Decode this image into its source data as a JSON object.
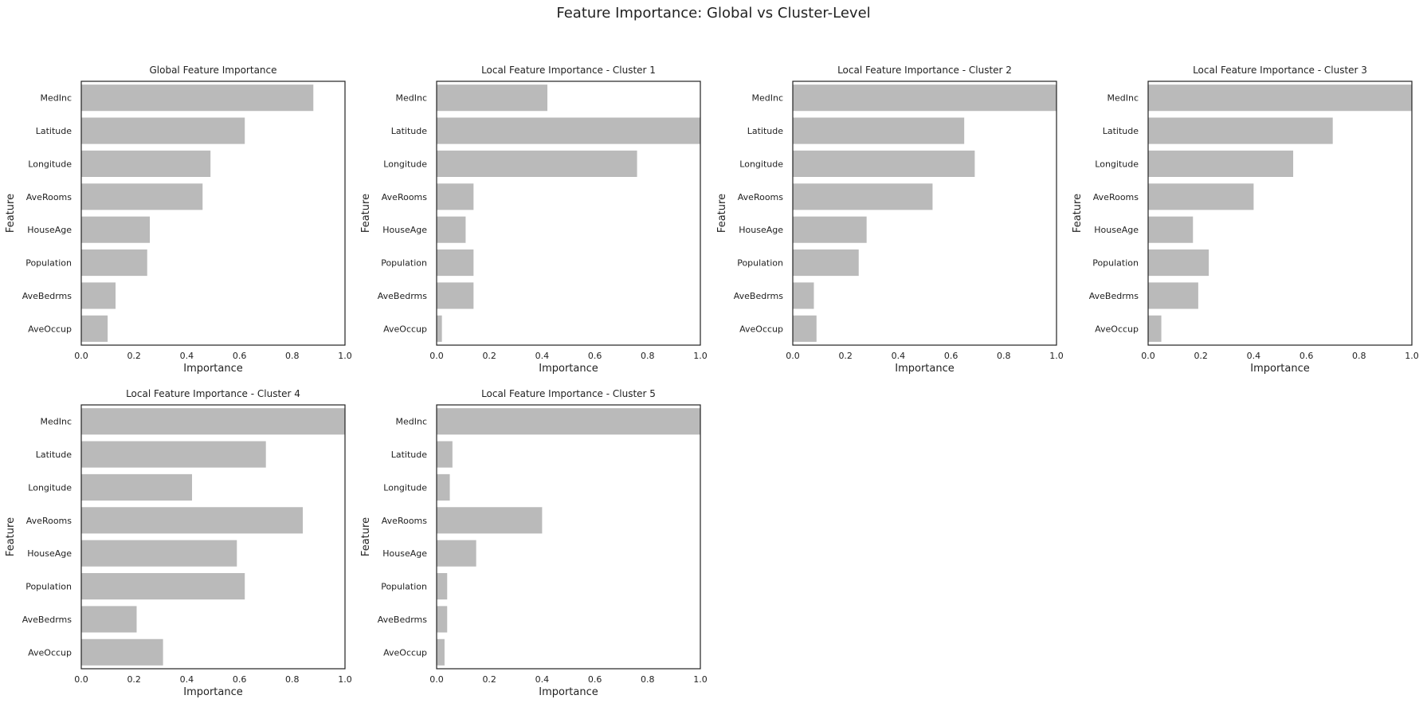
{
  "suptitle": "Feature Importance: Global vs Cluster-Level",
  "colors": {
    "bar": "#bababa",
    "axes": "#222222",
    "text": "#222222",
    "background": "#ffffff"
  },
  "chart_data": [
    {
      "type": "bar",
      "orientation": "horizontal",
      "title": "Global Feature Importance",
      "xlabel": "Importance",
      "ylabel": "Feature",
      "categories": [
        "MedInc",
        "Latitude",
        "Longitude",
        "AveRooms",
        "HouseAge",
        "Population",
        "AveBedrms",
        "AveOccup"
      ],
      "values": [
        0.88,
        0.62,
        0.49,
        0.46,
        0.26,
        0.25,
        0.13,
        0.1
      ],
      "xlim": [
        0,
        1.0
      ],
      "xticks": [
        "0.0",
        "0.2",
        "0.4",
        "0.6",
        "0.8",
        "1.0"
      ],
      "grid": false
    },
    {
      "type": "bar",
      "orientation": "horizontal",
      "title": "Local Feature Importance - Cluster 1",
      "xlabel": "Importance",
      "ylabel": "Feature",
      "categories": [
        "MedInc",
        "Latitude",
        "Longitude",
        "AveRooms",
        "HouseAge",
        "Population",
        "AveBedrms",
        "AveOccup"
      ],
      "values": [
        0.42,
        1.0,
        0.76,
        0.14,
        0.11,
        0.14,
        0.14,
        0.02
      ],
      "xlim": [
        0,
        1.0
      ],
      "xticks": [
        "0.0",
        "0.2",
        "0.4",
        "0.6",
        "0.8",
        "1.0"
      ],
      "grid": false
    },
    {
      "type": "bar",
      "orientation": "horizontal",
      "title": "Local Feature Importance - Cluster 2",
      "xlabel": "Importance",
      "ylabel": "Feature",
      "categories": [
        "MedInc",
        "Latitude",
        "Longitude",
        "AveRooms",
        "HouseAge",
        "Population",
        "AveBedrms",
        "AveOccup"
      ],
      "values": [
        1.0,
        0.65,
        0.69,
        0.53,
        0.28,
        0.25,
        0.08,
        0.09
      ],
      "xlim": [
        0,
        1.0
      ],
      "xticks": [
        "0.0",
        "0.2",
        "0.4",
        "0.6",
        "0.8",
        "1.0"
      ],
      "grid": false
    },
    {
      "type": "bar",
      "orientation": "horizontal",
      "title": "Local Feature Importance - Cluster 3",
      "xlabel": "Importance",
      "ylabel": "Feature",
      "categories": [
        "MedInc",
        "Latitude",
        "Longitude",
        "AveRooms",
        "HouseAge",
        "Population",
        "AveBedrms",
        "AveOccup"
      ],
      "values": [
        1.0,
        0.7,
        0.55,
        0.4,
        0.17,
        0.23,
        0.19,
        0.05
      ],
      "xlim": [
        0,
        1.0
      ],
      "xticks": [
        "0.0",
        "0.2",
        "0.4",
        "0.6",
        "0.8",
        "1.0"
      ],
      "grid": false
    },
    {
      "type": "bar",
      "orientation": "horizontal",
      "title": "Local Feature Importance - Cluster 4",
      "xlabel": "Importance",
      "ylabel": "Feature",
      "categories": [
        "MedInc",
        "Latitude",
        "Longitude",
        "AveRooms",
        "HouseAge",
        "Population",
        "AveBedrms",
        "AveOccup"
      ],
      "values": [
        1.0,
        0.7,
        0.42,
        0.84,
        0.59,
        0.62,
        0.21,
        0.31
      ],
      "xlim": [
        0,
        1.0
      ],
      "xticks": [
        "0.0",
        "0.2",
        "0.4",
        "0.6",
        "0.8",
        "1.0"
      ],
      "grid": false
    },
    {
      "type": "bar",
      "orientation": "horizontal",
      "title": "Local Feature Importance - Cluster 5",
      "xlabel": "Importance",
      "ylabel": "Feature",
      "categories": [
        "MedInc",
        "Latitude",
        "Longitude",
        "AveRooms",
        "HouseAge",
        "Population",
        "AveBedrms",
        "AveOccup"
      ],
      "values": [
        1.0,
        0.06,
        0.05,
        0.4,
        0.15,
        0.04,
        0.04,
        0.03
      ],
      "xlim": [
        0,
        1.0
      ],
      "xticks": [
        "0.0",
        "0.2",
        "0.4",
        "0.6",
        "0.8",
        "1.0"
      ],
      "grid": false
    }
  ]
}
